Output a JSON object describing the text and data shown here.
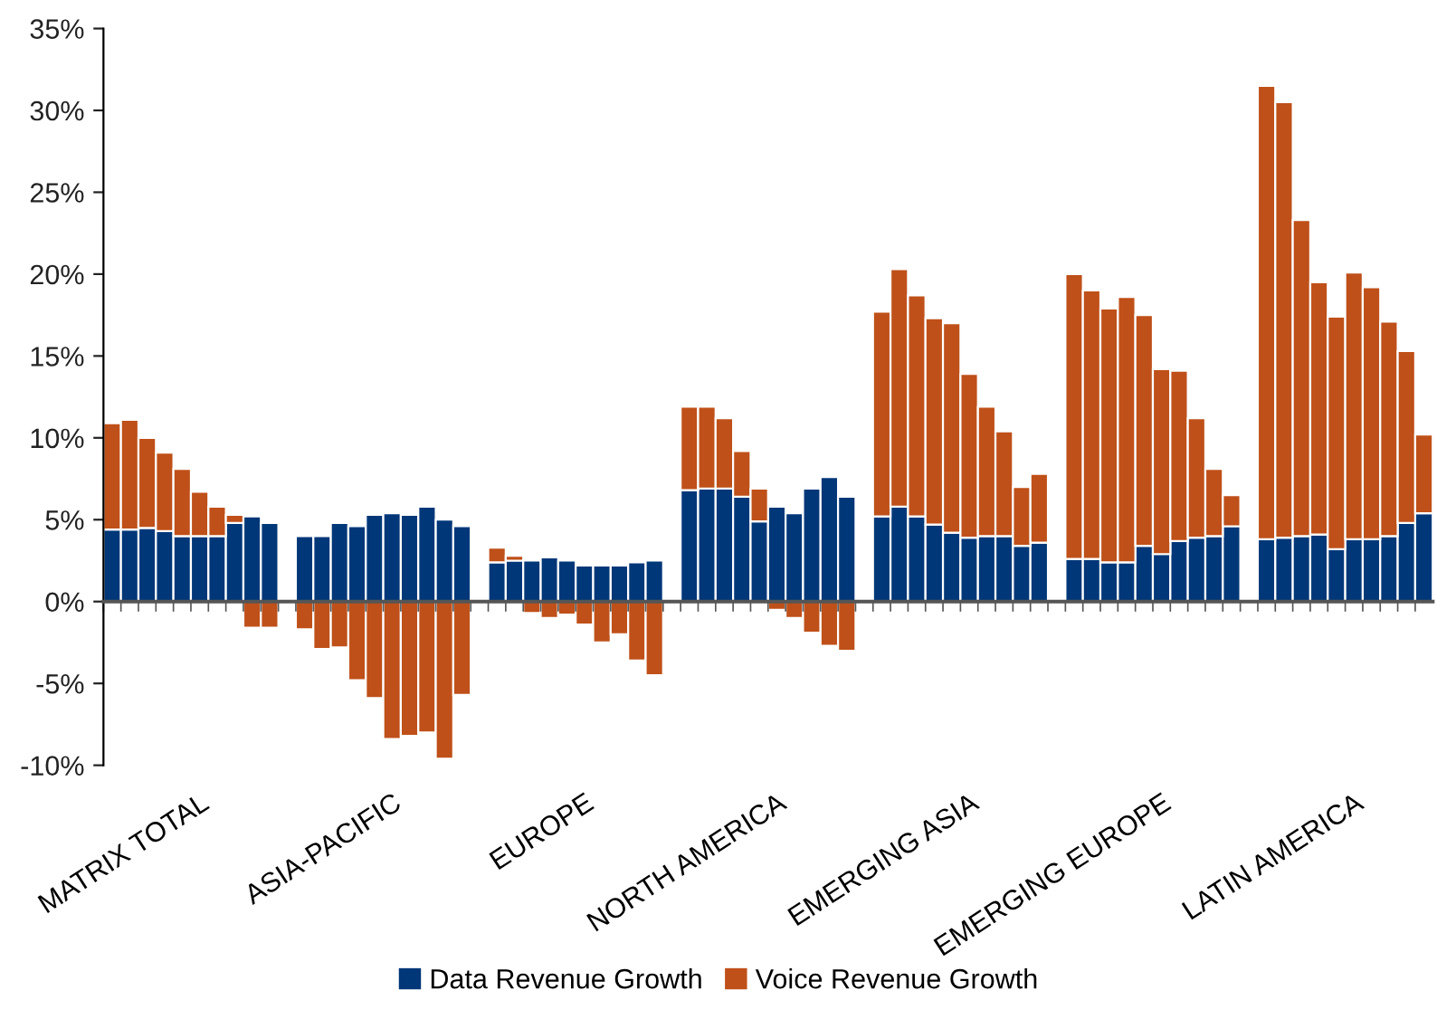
{
  "chart_data": {
    "type": "bar",
    "stacked": true,
    "categories": [
      null,
      null,
      null,
      null,
      null,
      "MATRIX TOTAL",
      null,
      null,
      null,
      null,
      null,
      null,
      null,
      null,
      null,
      null,
      "ASIA-PACIFIC",
      null,
      null,
      null,
      null,
      null,
      null,
      null,
      null,
      null,
      null,
      "EUROPE",
      null,
      null,
      null,
      null,
      null,
      null,
      null,
      null,
      null,
      null,
      "NORTH AMERICA",
      null,
      null,
      null,
      null,
      null,
      null,
      null,
      null,
      null,
      null,
      "EMERGING ASIA",
      null,
      null,
      null,
      null,
      null,
      null,
      null,
      null,
      null,
      null,
      "EMERGING EUROPE",
      null,
      null,
      null,
      null,
      null,
      null,
      null,
      null,
      null,
      null,
      "LATIN AMERICA",
      null,
      null,
      null,
      null
    ],
    "series": [
      {
        "name": "Data Revenue Growth",
        "color": "#003778",
        "values": [
          4.4,
          4.4,
          4.5,
          4.3,
          4.0,
          4.0,
          4.0,
          4.8,
          5.2,
          4.8,
          null,
          4.0,
          4.0,
          4.8,
          4.6,
          5.3,
          5.4,
          5.3,
          5.8,
          5.0,
          4.6,
          null,
          2.4,
          2.5,
          2.5,
          2.7,
          2.5,
          2.2,
          2.2,
          2.2,
          2.4,
          2.5,
          null,
          6.8,
          6.9,
          6.9,
          6.4,
          4.9,
          5.8,
          5.4,
          6.9,
          7.6,
          6.4,
          null,
          5.2,
          5.8,
          5.2,
          4.7,
          4.2,
          3.9,
          4.0,
          4.0,
          3.4,
          3.6,
          null,
          2.6,
          2.6,
          2.4,
          2.4,
          3.4,
          2.9,
          3.7,
          3.9,
          4.0,
          4.6,
          null,
          3.8,
          3.9,
          4.0,
          4.1,
          3.2,
          3.8,
          3.8,
          4.0,
          4.8,
          5.4
        ]
      },
      {
        "name": "Voice Revenue Growth",
        "color": "#bf5019",
        "values": [
          6.5,
          6.7,
          5.5,
          4.8,
          4.1,
          2.7,
          1.8,
          0.5,
          -1.6,
          -1.6,
          null,
          -1.7,
          -2.9,
          -2.8,
          -4.8,
          -5.9,
          -8.4,
          -8.2,
          -8.0,
          -9.6,
          -5.7,
          null,
          0.9,
          0.3,
          -0.7,
          -1.0,
          -0.8,
          -1.4,
          -2.5,
          -2.0,
          -3.6,
          -4.5,
          null,
          5.1,
          5.0,
          4.3,
          2.8,
          2.0,
          -0.5,
          -1.0,
          -1.9,
          -2.7,
          -3.0,
          null,
          12.5,
          14.5,
          13.5,
          12.6,
          12.8,
          10.0,
          7.9,
          6.4,
          3.6,
          4.2,
          null,
          17.4,
          16.4,
          15.5,
          16.2,
          14.1,
          11.3,
          10.4,
          7.3,
          4.1,
          1.9,
          null,
          27.7,
          26.6,
          19.3,
          15.4,
          14.2,
          16.3,
          15.4,
          13.1,
          10.5,
          4.8
        ]
      }
    ],
    "ylim": [
      -10,
      35
    ],
    "yticks": [
      {
        "value": -10,
        "label": "-10%"
      },
      {
        "value": -5,
        "label": "-5%"
      },
      {
        "value": 0,
        "label": "0%"
      },
      {
        "value": 5,
        "label": "5%"
      },
      {
        "value": 10,
        "label": "10%"
      },
      {
        "value": 15,
        "label": "15%"
      },
      {
        "value": 20,
        "label": "20%"
      },
      {
        "value": 25,
        "label": "25%"
      },
      {
        "value": 30,
        "label": "30%"
      },
      {
        "value": 35,
        "label": "35%"
      }
    ],
    "legend": "bottom"
  }
}
